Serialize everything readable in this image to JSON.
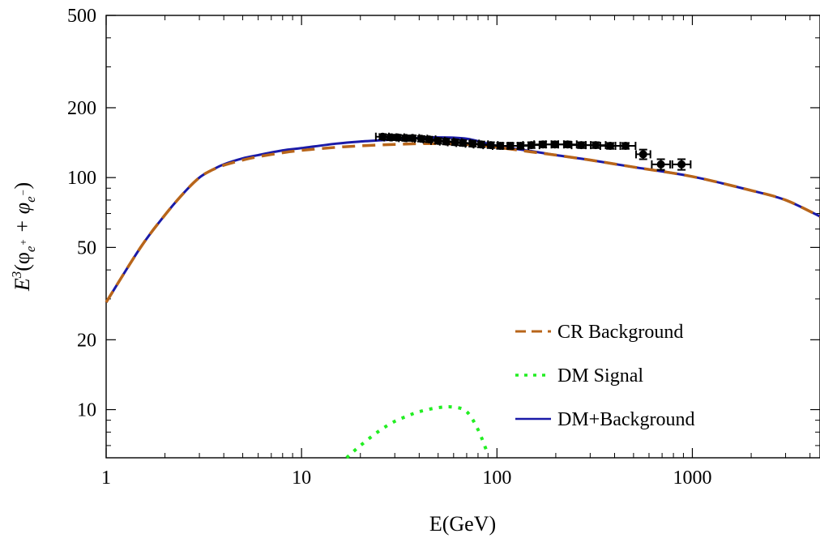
{
  "chart_data": {
    "type": "line",
    "x_scale": "log",
    "y_scale": "log",
    "xlim": [
      1,
      4500
    ],
    "ylim": [
      6.2,
      500
    ],
    "xlabel": "E(GeV)",
    "ylabel": {
      "prefix": "E",
      "sup": "3",
      "open": "(φ",
      "sub1": "e",
      "sub1sup": "+",
      "plus": " + φ",
      "sub2": "e",
      "sub2sup": "−",
      "close": ")"
    },
    "x_ticks": [
      {
        "value": 1,
        "label": "1"
      },
      {
        "value": 10,
        "label": "10"
      },
      {
        "value": 100,
        "label": "100"
      },
      {
        "value": 1000,
        "label": "1000"
      }
    ],
    "x_minor_ticks": [
      2,
      3,
      4,
      5,
      6,
      7,
      8,
      9,
      20,
      30,
      40,
      50,
      60,
      70,
      80,
      90,
      200,
      300,
      400,
      500,
      600,
      700,
      800,
      900,
      2000,
      3000,
      4000
    ],
    "y_ticks": [
      {
        "value": 10,
        "label": "10"
      },
      {
        "value": 20,
        "label": "20"
      },
      {
        "value": 50,
        "label": "50"
      },
      {
        "value": 100,
        "label": "100"
      },
      {
        "value": 200,
        "label": "200"
      },
      {
        "value": 500,
        "label": "500"
      }
    ],
    "y_minor_ticks": [
      7,
      8,
      9,
      30,
      40,
      60,
      70,
      80,
      90,
      300,
      400
    ],
    "grid": false,
    "legend_position": "bottom-right",
    "series": [
      {
        "name": "CR Background",
        "style": "dashed",
        "color": "#b8651a",
        "x": [
          1,
          1.5,
          2,
          2.5,
          3,
          3.5,
          4,
          5,
          6,
          8,
          10,
          15,
          20,
          30,
          40,
          50,
          70,
          100,
          150,
          200,
          300,
          500,
          1000,
          2000,
          3000,
          4500
        ],
        "y": [
          29,
          50,
          69,
          86,
          100,
          108,
          113,
          119,
          123,
          128,
          131,
          135,
          137,
          139,
          140,
          140,
          139,
          135,
          129,
          125,
          119,
          111,
          101,
          88,
          80,
          68
        ]
      },
      {
        "name": "DM Signal",
        "style": "dotted",
        "color": "#22ee22",
        "x": [
          17,
          20,
          25,
          30,
          35,
          40,
          50,
          60,
          70,
          80,
          90
        ],
        "y": [
          6.2,
          7.0,
          8.1,
          8.9,
          9.4,
          9.8,
          10.2,
          10.25,
          9.8,
          8.2,
          6.4
        ]
      },
      {
        "name": "DM+Background",
        "style": "solid",
        "color": "#1a1aa8",
        "x": [
          1,
          1.5,
          2,
          2.5,
          3,
          3.5,
          4,
          5,
          6,
          8,
          10,
          15,
          20,
          30,
          40,
          50,
          70,
          100,
          150,
          200,
          300,
          500,
          1000,
          2000,
          3000,
          4500
        ],
        "y": [
          29,
          50,
          69,
          86,
          100,
          108,
          114,
          121,
          125,
          131,
          134,
          140,
          143,
          146,
          148,
          149,
          147,
          137,
          130,
          125,
          119,
          111,
          101,
          88,
          80,
          68
        ]
      }
    ],
    "data_points": [
      {
        "x": 26,
        "xlo": 24,
        "xhi": 28,
        "y": 150,
        "err": 4
      },
      {
        "x": 28.5,
        "xlo": 26.5,
        "xhi": 30.5,
        "y": 149,
        "err": 4
      },
      {
        "x": 31,
        "xlo": 29,
        "xhi": 33.5,
        "y": 149,
        "err": 4
      },
      {
        "x": 34,
        "xlo": 31.5,
        "xhi": 37,
        "y": 148,
        "err": 4
      },
      {
        "x": 37,
        "xlo": 34.5,
        "xhi": 40,
        "y": 148,
        "err": 4
      },
      {
        "x": 41,
        "xlo": 38,
        "xhi": 44,
        "y": 147,
        "err": 4
      },
      {
        "x": 45,
        "xlo": 42,
        "xhi": 48.5,
        "y": 146,
        "err": 4
      },
      {
        "x": 50,
        "xlo": 46,
        "xhi": 54,
        "y": 144,
        "err": 4
      },
      {
        "x": 55,
        "xlo": 51,
        "xhi": 60,
        "y": 143,
        "err": 4
      },
      {
        "x": 61,
        "xlo": 56,
        "xhi": 66,
        "y": 142,
        "err": 4
      },
      {
        "x": 67,
        "xlo": 62,
        "xhi": 73,
        "y": 141,
        "err": 4
      },
      {
        "x": 75,
        "xlo": 69,
        "xhi": 81,
        "y": 140,
        "err": 4
      },
      {
        "x": 83,
        "xlo": 76,
        "xhi": 90,
        "y": 139,
        "err": 4
      },
      {
        "x": 93,
        "xlo": 85,
        "xhi": 101,
        "y": 138,
        "err": 4
      },
      {
        "x": 104,
        "xlo": 95,
        "xhi": 114,
        "y": 137,
        "err": 4
      },
      {
        "x": 117,
        "xlo": 107,
        "xhi": 128,
        "y": 137,
        "err": 4
      },
      {
        "x": 132,
        "xlo": 120,
        "xhi": 145,
        "y": 137,
        "err": 4
      },
      {
        "x": 150,
        "xlo": 136,
        "xhi": 165,
        "y": 138,
        "err": 4
      },
      {
        "x": 172,
        "xlo": 155,
        "xhi": 190,
        "y": 139,
        "err": 4
      },
      {
        "x": 198,
        "xlo": 178,
        "xhi": 220,
        "y": 139,
        "err": 4
      },
      {
        "x": 230,
        "xlo": 206,
        "xhi": 256,
        "y": 139,
        "err": 4
      },
      {
        "x": 270,
        "xlo": 241,
        "xhi": 302,
        "y": 138,
        "err": 4
      },
      {
        "x": 320,
        "xlo": 285,
        "xhi": 360,
        "y": 138,
        "err": 4
      },
      {
        "x": 380,
        "xlo": 338,
        "xhi": 428,
        "y": 137,
        "err": 4
      },
      {
        "x": 455,
        "xlo": 404,
        "xhi": 512,
        "y": 137,
        "err": 4
      },
      {
        "x": 560,
        "xlo": 515,
        "xhi": 610,
        "y": 126,
        "err": 6
      },
      {
        "x": 690,
        "xlo": 620,
        "xhi": 770,
        "y": 114,
        "err": 6
      },
      {
        "x": 880,
        "xlo": 790,
        "xhi": 980,
        "y": 114,
        "err": 6
      }
    ]
  }
}
